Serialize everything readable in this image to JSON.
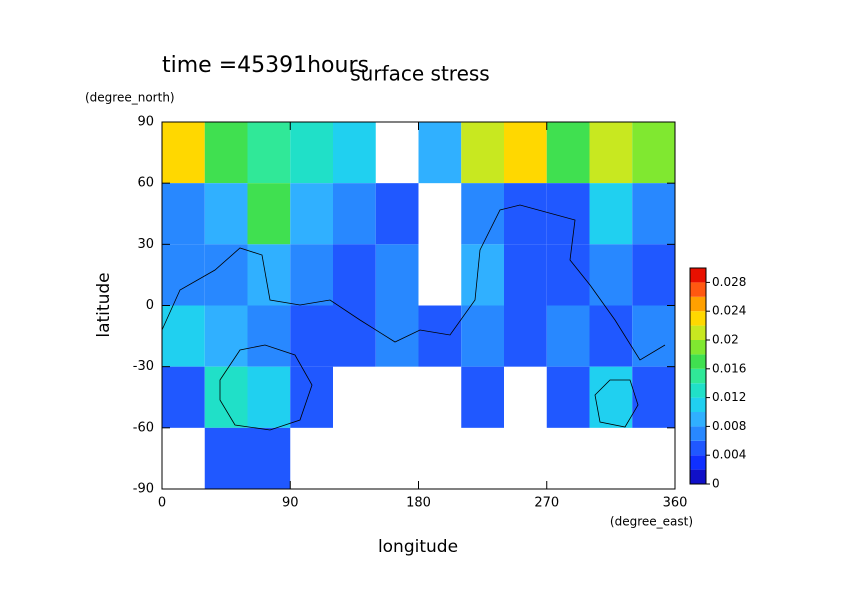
{
  "chart_data": {
    "type": "contour",
    "title": "surface stress",
    "subtitle": "time =45391hours",
    "xlabel": "longitude",
    "xunit": "(degree_east)",
    "ylabel": "latitude",
    "yunit": "(degree_north)",
    "x": [
      15,
      45,
      75,
      105,
      135,
      165,
      195,
      225,
      255,
      285,
      315,
      345
    ],
    "y": [
      75,
      45,
      15,
      -15,
      -45,
      -75
    ],
    "values": [
      [
        0.022,
        0.016,
        0.014,
        0.012,
        0.01,
        null,
        0.008,
        0.02,
        0.022,
        0.016,
        0.02,
        0.018
      ],
      [
        0.006,
        0.008,
        0.016,
        0.008,
        0.006,
        0.004,
        null,
        0.006,
        0.004,
        0.004,
        0.01,
        0.006
      ],
      [
        0.006,
        0.006,
        0.008,
        0.006,
        0.004,
        0.006,
        null,
        0.008,
        0.004,
        0.004,
        0.006,
        0.004
      ],
      [
        0.01,
        0.008,
        0.006,
        0.004,
        0.004,
        0.006,
        0.004,
        0.006,
        0.004,
        0.006,
        0.004,
        0.006
      ],
      [
        0.004,
        0.012,
        0.01,
        0.004,
        null,
        null,
        null,
        0.004,
        null,
        0.004,
        0.01,
        0.004
      ],
      [
        null,
        0.004,
        0.004,
        null,
        null,
        null,
        null,
        null,
        null,
        null,
        null,
        null
      ]
    ],
    "xlim": [
      0,
      360
    ],
    "xticks": [
      0,
      90,
      180,
      270,
      360
    ],
    "ylim": [
      -90,
      90
    ],
    "yticks": [
      -90,
      -60,
      -30,
      0,
      30,
      60,
      90
    ],
    "clim": [
      0,
      0.03
    ],
    "cticks": [
      0,
      0.004,
      0.008,
      0.012,
      0.016,
      0.02,
      0.024,
      0.028
    ],
    "colors": [
      "#1010c8",
      "#1030ff",
      "#2058ff",
      "#2888ff",
      "#30b0ff",
      "#20d0f0",
      "#20e0c8",
      "#30e898",
      "#40e050",
      "#80e830",
      "#c8e820",
      "#ffd800",
      "#ffa000",
      "#ff5810",
      "#e81000"
    ]
  }
}
